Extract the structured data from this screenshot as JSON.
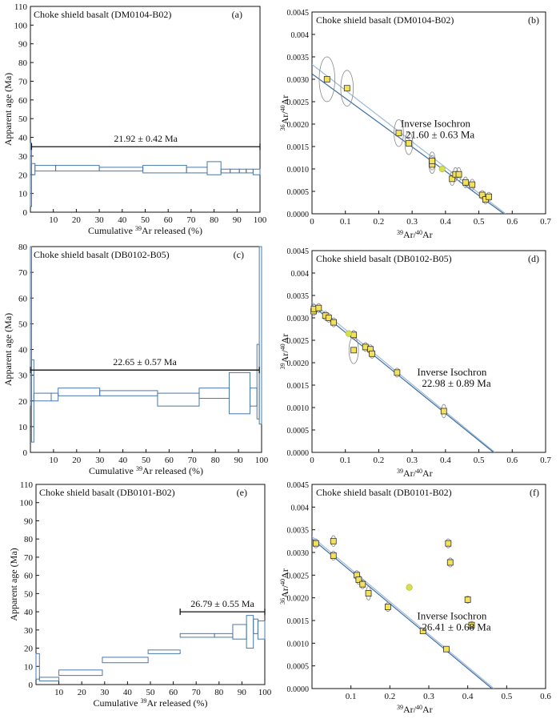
{
  "chart_data": [
    {
      "id": "a",
      "type": "step",
      "title": "Choke shield basalt (DM0104-B02)",
      "panel_label": "(a)",
      "xlabel_parts": [
        "Cumulative ",
        "39",
        "Ar released (%)"
      ],
      "ylabel": "Apparent age (Ma)",
      "xlim": [
        0,
        100
      ],
      "ylim": [
        0,
        110
      ],
      "xticks": [
        10,
        20,
        30,
        40,
        50,
        60,
        70,
        80,
        90,
        100
      ],
      "yticks": [
        0,
        10,
        20,
        30,
        40,
        50,
        60,
        70,
        80,
        90,
        100,
        110
      ],
      "plateau": {
        "label": "21.92 ± 0.42 Ma",
        "x_start": 0.5,
        "x_end": 100,
        "age": 35
      },
      "steps": [
        {
          "x0": 0,
          "x1": 0.5,
          "lo": 3,
          "hi": 37
        },
        {
          "x0": 0.5,
          "x1": 2,
          "lo": 20,
          "hi": 26
        },
        {
          "x0": 2,
          "x1": 11,
          "lo": 22,
          "hi": 25
        },
        {
          "x0": 11,
          "x1": 30,
          "lo": 22,
          "hi": 25
        },
        {
          "x0": 30,
          "x1": 49,
          "lo": 22,
          "hi": 24
        },
        {
          "x0": 49,
          "x1": 68,
          "lo": 21,
          "hi": 25
        },
        {
          "x0": 68,
          "x1": 77,
          "lo": 21,
          "hi": 24
        },
        {
          "x0": 77,
          "x1": 83,
          "lo": 20,
          "hi": 27
        },
        {
          "x0": 83,
          "x1": 87,
          "lo": 21,
          "hi": 23
        },
        {
          "x0": 87,
          "x1": 91,
          "lo": 21,
          "hi": 23
        },
        {
          "x0": 91,
          "x1": 94,
          "lo": 21,
          "hi": 23
        },
        {
          "x0": 94,
          "x1": 97,
          "lo": 21,
          "hi": 23
        },
        {
          "x0": 97,
          "x1": 100,
          "lo": 20,
          "hi": 23
        }
      ]
    },
    {
      "id": "b",
      "type": "scatter",
      "title": "Choke shield basalt (DM0104-B02)",
      "panel_label": "(b)",
      "xlabel": "Ar/Ar",
      "ylabel": "Ar/Ar",
      "xlim": [
        0,
        0.7
      ],
      "ylim": [
        0,
        0.0045
      ],
      "xticks": [
        0,
        0.1,
        0.2,
        0.3,
        0.4,
        0.5,
        0.6,
        0.7
      ],
      "xtick_labels": [
        "0",
        "0.1",
        "0.2",
        "0.3",
        "0.4",
        "0.5",
        "0.6",
        "0.7"
      ],
      "yticks": [
        0,
        0.0005,
        0.001,
        0.0015,
        0.002,
        0.0025,
        0.003,
        0.0035,
        0.004,
        0.0045
      ],
      "ytick_labels": [
        "0.0000",
        "0.0005",
        "0.0010",
        "0.0015",
        "0.0020",
        "0.0025",
        "0.0030",
        "0.0035",
        "0.004",
        "0.0045"
      ],
      "annotation": [
        "Inverse Isochron",
        "21.60 ± 0.63 Ma"
      ],
      "fit_lines": [
        {
          "x0": 0,
          "y0": 0.00333,
          "x1": 0.58,
          "y1": 0
        },
        {
          "x0": 0,
          "y0": 0.00312,
          "x1": 0.575,
          "y1": 0
        }
      ],
      "points": [
        {
          "x": 0.045,
          "y": 0.003,
          "ey": 0.0005
        },
        {
          "x": 0.105,
          "y": 0.0028,
          "ey": 0.0004
        },
        {
          "x": 0.26,
          "y": 0.0018,
          "ey": 0.0003
        },
        {
          "x": 0.29,
          "y": 0.00157,
          "ey": 0.00025
        },
        {
          "x": 0.36,
          "y": 0.0011,
          "ey": 0.0002
        },
        {
          "x": 0.36,
          "y": 0.00118,
          "ey": 0.0002
        },
        {
          "x": 0.42,
          "y": 0.00078,
          "ey": 0.00015
        },
        {
          "x": 0.43,
          "y": 0.00088,
          "ey": 0.00015
        },
        {
          "x": 0.44,
          "y": 0.00088,
          "ey": 0.00015
        },
        {
          "x": 0.46,
          "y": 0.0007,
          "ey": 0.00012
        },
        {
          "x": 0.48,
          "y": 0.00065,
          "ey": 0.00012
        },
        {
          "x": 0.51,
          "y": 0.00042,
          "ey": 0.0001
        },
        {
          "x": 0.52,
          "y": 0.00032,
          "ey": 0.0001
        },
        {
          "x": 0.53,
          "y": 0.00038,
          "ey": 0.0001
        }
      ],
      "excluded": [
        {
          "x": 0.39,
          "y": 0.001
        }
      ]
    },
    {
      "id": "c",
      "type": "step",
      "title": "Choke shield basalt (DB0102-B05)",
      "panel_label": "(c)",
      "xlabel_parts": [
        "Cumulative ",
        "39",
        "Ar released (%)"
      ],
      "ylabel": "Apparent age (Ma)",
      "xlim": [
        0,
        100
      ],
      "ylim": [
        0,
        80
      ],
      "xticks": [
        10,
        20,
        30,
        40,
        50,
        60,
        70,
        80,
        90,
        100
      ],
      "yticks": [
        0,
        10,
        20,
        30,
        40,
        50,
        60,
        70,
        80
      ],
      "plateau": {
        "label": "22.65 ± 0.57 Ma",
        "x_start": 0,
        "x_end": 99,
        "age": 32
      },
      "steps": [
        {
          "x0": 0,
          "x1": 0.5,
          "lo": 18,
          "hi": 80
        },
        {
          "x0": 0.5,
          "x1": 1.5,
          "lo": 4,
          "hi": 36
        },
        {
          "x0": 1.5,
          "x1": 9,
          "lo": 20,
          "hi": 23
        },
        {
          "x0": 9,
          "x1": 12,
          "lo": 20,
          "hi": 23
        },
        {
          "x0": 12,
          "x1": 30,
          "lo": 22,
          "hi": 25
        },
        {
          "x0": 30,
          "x1": 55,
          "lo": 22,
          "hi": 24
        },
        {
          "x0": 55,
          "x1": 73,
          "lo": 18,
          "hi": 23
        },
        {
          "x0": 73,
          "x1": 86,
          "lo": 21,
          "hi": 25
        },
        {
          "x0": 86,
          "x1": 95,
          "lo": 15,
          "hi": 31
        },
        {
          "x0": 95,
          "x1": 98,
          "lo": 18,
          "hi": 25
        },
        {
          "x0": 98,
          "x1": 99,
          "lo": 13,
          "hi": 42
        },
        {
          "x0": 99,
          "x1": 100,
          "lo": 11,
          "hi": 80
        }
      ]
    },
    {
      "id": "d",
      "type": "scatter",
      "title": "Choke shield basalt (DB0102-B05)",
      "panel_label": "(d)",
      "xlabel": "Ar/Ar",
      "ylabel": "Ar/Ar",
      "xlim": [
        0,
        0.7
      ],
      "ylim": [
        0,
        0.0045
      ],
      "xticks": [
        0,
        0.1,
        0.2,
        0.3,
        0.4,
        0.5,
        0.6,
        0.7
      ],
      "xtick_labels": [
        "0",
        "0.1",
        "0.2",
        "0.3",
        "0.4",
        "0.5",
        "0.6",
        "0.7"
      ],
      "yticks": [
        0,
        0.0005,
        0.001,
        0.0015,
        0.002,
        0.0025,
        0.003,
        0.0035,
        0.004,
        0.0045
      ],
      "ytick_labels": [
        "0.0000",
        "0.0005",
        "0.0010",
        "0.0015",
        "0.0020",
        "0.0025",
        "0.0030",
        "0.0035",
        "0.004",
        "0.0045"
      ],
      "annotation": [
        "Inverse Isochron",
        "22.98 ± 0.89 Ma"
      ],
      "fit_lines": [
        {
          "x0": 0,
          "y0": 0.00335,
          "x1": 0.548,
          "y1": 0
        },
        {
          "x0": 0,
          "y0": 0.00328,
          "x1": 0.544,
          "y1": 0
        }
      ],
      "points": [
        {
          "x": 0.005,
          "y": 0.00315,
          "ey": 0.0001
        },
        {
          "x": 0.006,
          "y": 0.0032,
          "ey": 0.0001
        },
        {
          "x": 0.02,
          "y": 0.00322,
          "ey": 0.0001
        },
        {
          "x": 0.04,
          "y": 0.00305,
          "ey": 0.0001
        },
        {
          "x": 0.05,
          "y": 0.003,
          "ey": 0.0001
        },
        {
          "x": 0.065,
          "y": 0.0029,
          "ey": 0.0001
        },
        {
          "x": 0.125,
          "y": 0.00262,
          "ey": 0.0001
        },
        {
          "x": 0.125,
          "y": 0.00228,
          "ey": 0.0003
        },
        {
          "x": 0.16,
          "y": 0.00235,
          "ey": 0.0001
        },
        {
          "x": 0.175,
          "y": 0.0023,
          "ey": 0.0001
        },
        {
          "x": 0.18,
          "y": 0.0022,
          "ey": 0.0001
        },
        {
          "x": 0.255,
          "y": 0.00178,
          "ey": 0.0001
        },
        {
          "x": 0.395,
          "y": 0.00092,
          "ey": 0.00015
        }
      ],
      "excluded": [
        {
          "x": 0.11,
          "y": 0.00265
        }
      ]
    },
    {
      "id": "e",
      "type": "step",
      "title": "Choke shield basalt (DB0101-B02)",
      "panel_label": "(e)",
      "xlabel_parts": [
        "Cumulative ",
        "39",
        "Ar released (%)"
      ],
      "ylabel": "Apparent age (Ma)",
      "xlim": [
        0,
        100
      ],
      "ylim": [
        0,
        110
      ],
      "xticks": [
        10,
        20,
        30,
        40,
        50,
        60,
        70,
        80,
        90,
        100
      ],
      "yticks": [
        0,
        10,
        20,
        30,
        40,
        50,
        60,
        70,
        80,
        90,
        100,
        110
      ],
      "plateau": {
        "label": "26.79 ± 0.55 Ma",
        "x_start": 63,
        "x_end": 100,
        "age": 40
      },
      "steps": [
        {
          "x0": 0,
          "x1": 1.5,
          "lo": 3,
          "hi": 17
        },
        {
          "x0": 1.5,
          "x1": 10,
          "lo": 2,
          "hi": 4
        },
        {
          "x0": 10,
          "x1": 29,
          "lo": 5,
          "hi": 8
        },
        {
          "x0": 29,
          "x1": 49,
          "lo": 12,
          "hi": 15
        },
        {
          "x0": 49,
          "x1": 63,
          "lo": 17,
          "hi": 19
        },
        {
          "x0": 63,
          "x1": 78,
          "lo": 26,
          "hi": 28
        },
        {
          "x0": 78,
          "x1": 86,
          "lo": 26,
          "hi": 28
        },
        {
          "x0": 86,
          "x1": 92,
          "lo": 25,
          "hi": 33
        },
        {
          "x0": 92,
          "x1": 95,
          "lo": 20,
          "hi": 38
        },
        {
          "x0": 95,
          "x1": 97,
          "lo": 28,
          "hi": 36
        },
        {
          "x0": 97,
          "x1": 100,
          "lo": 25,
          "hi": 35
        }
      ]
    },
    {
      "id": "f",
      "type": "scatter",
      "title": "Choke shield basalt (DB0101-B02)",
      "panel_label": "(f)",
      "xlabel": "Ar/Ar",
      "ylabel": "Ar/Ar",
      "xlim": [
        0,
        0.6
      ],
      "ylim": [
        0,
        0.0045
      ],
      "xticks": [
        0,
        0.1,
        0.2,
        0.3,
        0.4,
        0.5,
        0.6
      ],
      "xtick_labels": [
        "",
        "0.1",
        "0.2",
        "0.3",
        "0.4",
        "0.5",
        "0.6"
      ],
      "yticks": [
        0,
        0.0005,
        0.001,
        0.0015,
        0.002,
        0.0025,
        0.003,
        0.0035,
        0.004,
        0.0045
      ],
      "ytick_labels": [
        "0.0000",
        "0.0005",
        "0.0010",
        "0.0015",
        "0.0020",
        "0.0025",
        "0.0030",
        "0.0035",
        "0.004",
        "0.0045"
      ],
      "annotation": [
        "Inverse Isochron",
        "26.41 ± 0.68 Ma"
      ],
      "fit_lines": [
        {
          "x0": 0,
          "y0": 0.00335,
          "x1": 0.467,
          "y1": 0
        },
        {
          "x0": 0,
          "y0": 0.0033,
          "x1": 0.462,
          "y1": 0
        }
      ],
      "points": [
        {
          "x": 0.01,
          "y": 0.0032,
          "ey": 0.0001
        },
        {
          "x": 0.055,
          "y": 0.00325,
          "ey": 0.00012
        },
        {
          "x": 0.055,
          "y": 0.00293,
          "ey": 0.0001
        },
        {
          "x": 0.115,
          "y": 0.0025,
          "ey": 0.0001
        },
        {
          "x": 0.12,
          "y": 0.0024,
          "ey": 0.0001
        },
        {
          "x": 0.13,
          "y": 0.0023,
          "ey": 0.0001
        },
        {
          "x": 0.145,
          "y": 0.0021,
          "ey": 0.00015
        },
        {
          "x": 0.195,
          "y": 0.0018,
          "ey": 0.0001
        },
        {
          "x": 0.285,
          "y": 0.00127,
          "ey": 5e-05
        },
        {
          "x": 0.345,
          "y": 0.00087,
          "ey": 4e-05
        },
        {
          "x": 0.35,
          "y": 0.0032,
          "ey": 0.0001
        },
        {
          "x": 0.355,
          "y": 0.00278,
          "ey": 0.0001
        },
        {
          "x": 0.4,
          "y": 0.00196,
          "ey": 8e-05
        },
        {
          "x": 0.41,
          "y": 0.0014,
          "ey": 8e-05
        }
      ],
      "excluded": [
        {
          "x": 0.25,
          "y": 0.00223
        }
      ]
    }
  ]
}
